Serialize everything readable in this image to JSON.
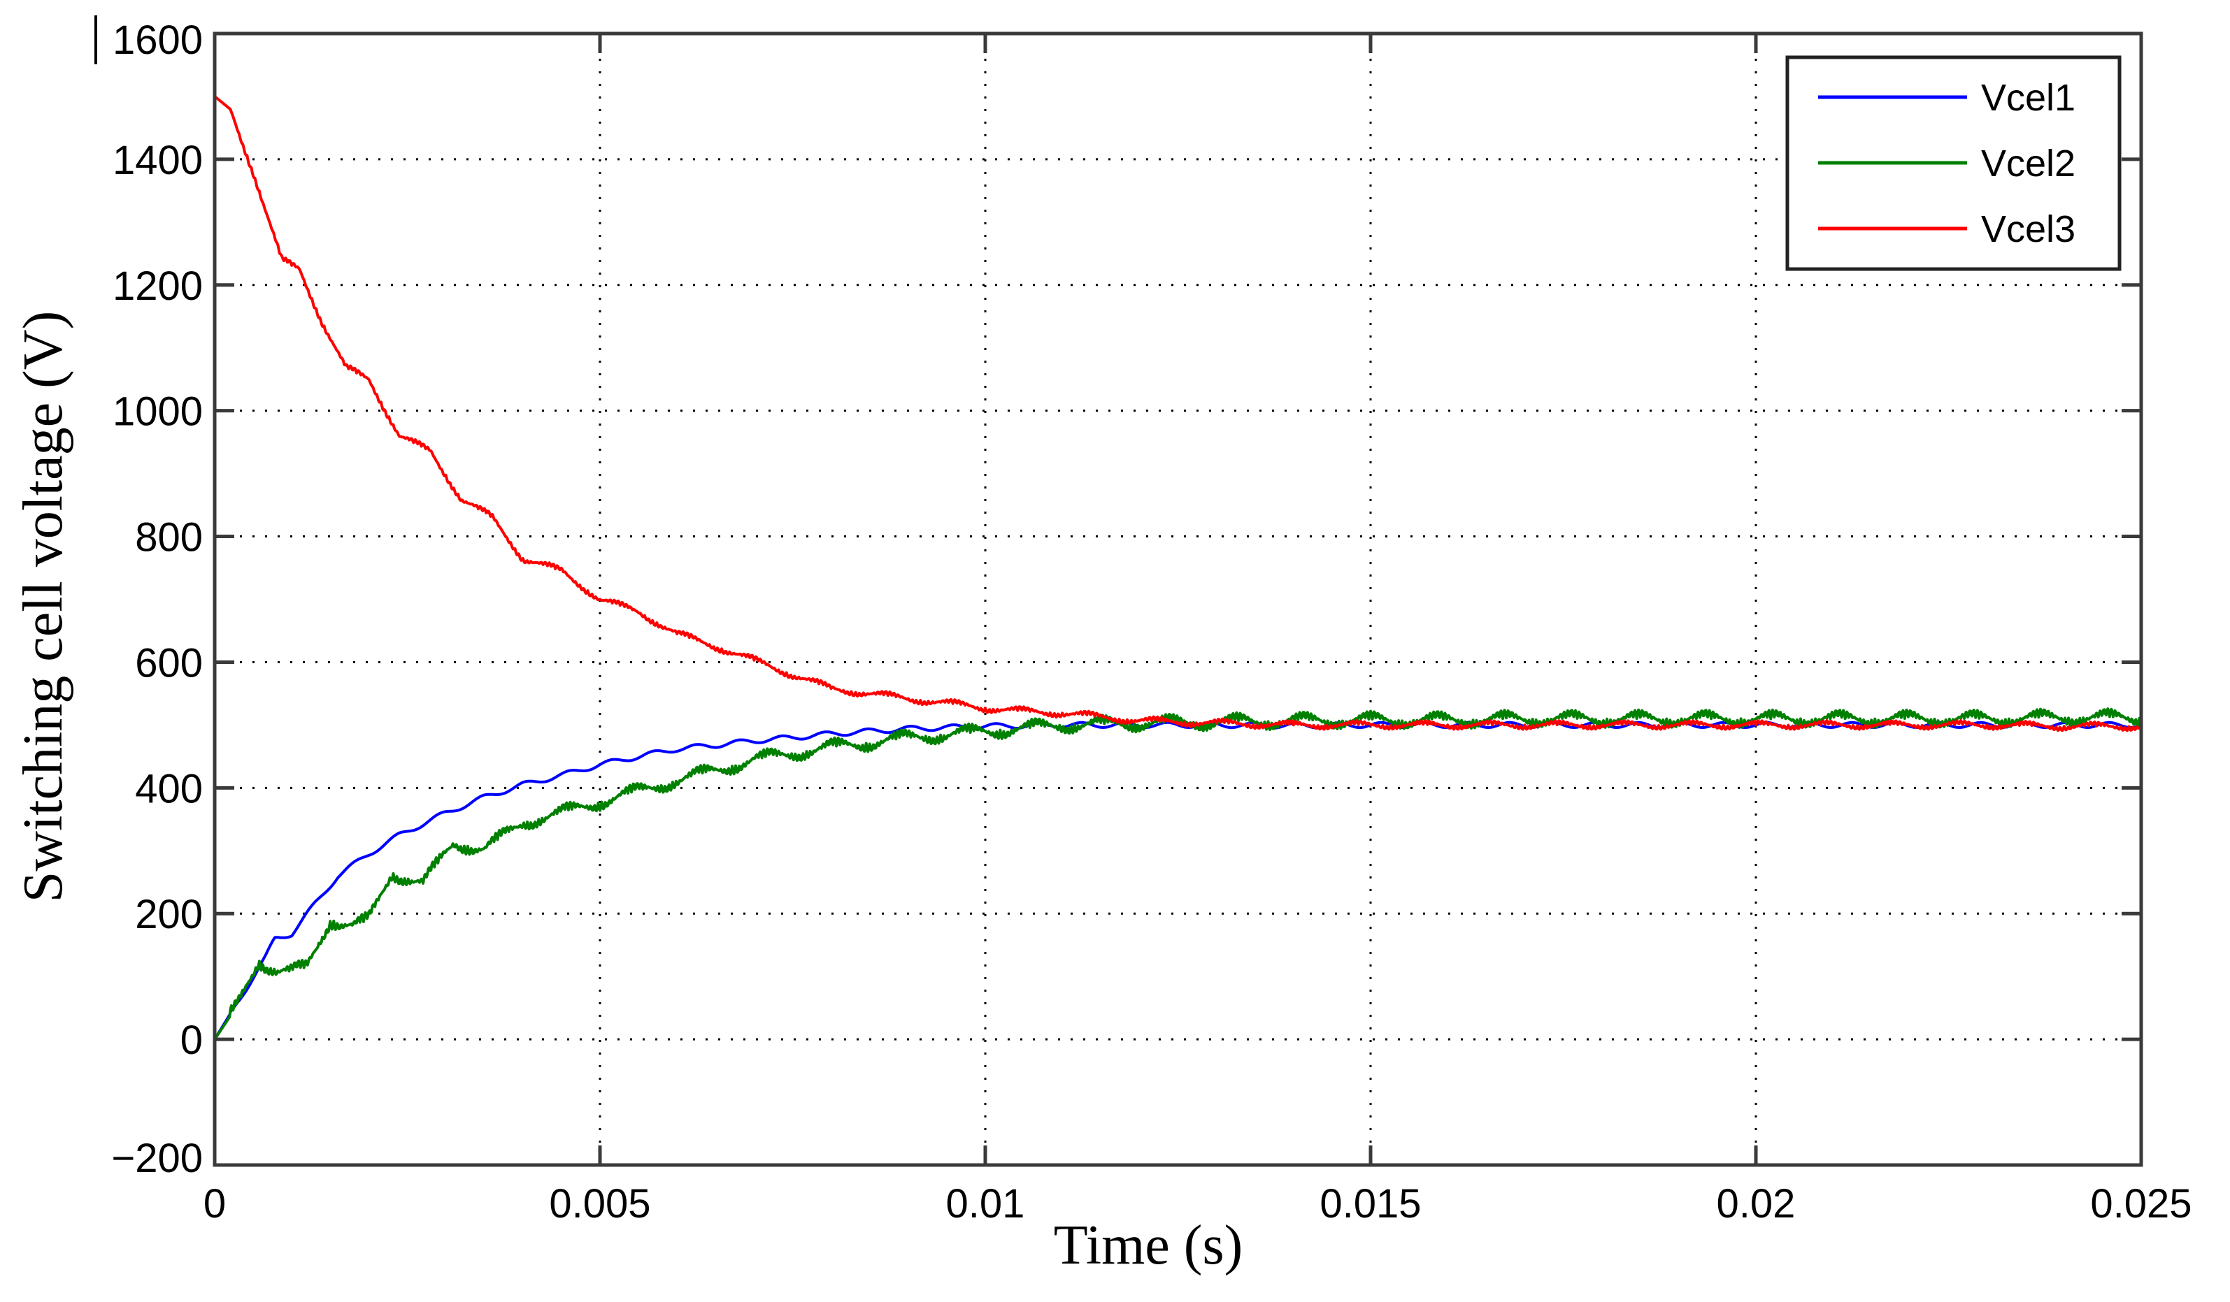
{
  "chart_data": {
    "type": "line",
    "title": "",
    "xlabel": "Time (s)",
    "ylabel": "Switching cell voltage (V)",
    "xlim": [
      0,
      0.025
    ],
    "ylim": [
      -200,
      1600
    ],
    "grid": true,
    "legend_position": "upper right",
    "x_ticks": [
      0,
      0.005,
      0.01,
      0.015,
      0.02,
      0.025
    ],
    "x_tick_labels": [
      "0",
      "0.005",
      "0.01",
      "0.015",
      "0.02",
      "0.025"
    ],
    "y_ticks": [
      -200,
      0,
      200,
      400,
      600,
      800,
      1000,
      1200,
      1400,
      1600
    ],
    "y_tick_labels": [
      "-200",
      "0",
      "200",
      "400",
      "600",
      "800",
      "1000",
      "1200",
      "1400",
      "1600"
    ],
    "series": [
      {
        "name": "Vcel1",
        "color": "#0000ff",
        "x": [
          0,
          0.0003,
          0.00066,
          0.00078,
          0.001,
          0.0013,
          0.0016,
          0.002,
          0.0024,
          0.003,
          0.0035,
          0.004,
          0.0045,
          0.005,
          0.0055,
          0.006,
          0.0065,
          0.007,
          0.0075,
          0.008,
          0.0085,
          0.009,
          0.0095,
          0.01,
          0.011,
          0.012,
          0.013,
          0.014,
          0.015,
          0.016,
          0.017,
          0.018,
          0.019,
          0.02,
          0.021,
          0.022,
          0.023,
          0.024,
          0.025
        ],
        "y": [
          0,
          60,
          130,
          160,
          168,
          215,
          260,
          295,
          325,
          360,
          385,
          405,
          420,
          437,
          450,
          462,
          468,
          475,
          480,
          486,
          490,
          494,
          496,
          498,
          500,
          500,
          500,
          499,
          500,
          500,
          500,
          500,
          500,
          500,
          500,
          500,
          500,
          500,
          500
        ]
      },
      {
        "name": "Vcel2",
        "color": "#008000",
        "x": [
          0,
          0.0003,
          0.00057,
          0.0008,
          0.001,
          0.0012,
          0.0015,
          0.0018,
          0.002,
          0.0023,
          0.0027,
          0.0031,
          0.0035,
          0.004,
          0.0045,
          0.005,
          0.0055,
          0.006,
          0.0065,
          0.007,
          0.0075,
          0.008,
          0.0085,
          0.009,
          0.0095,
          0.01,
          0.011,
          0.012,
          0.013,
          0.014,
          0.015,
          0.016,
          0.017,
          0.018,
          0.019,
          0.02,
          0.021,
          0.022,
          0.023,
          0.024,
          0.025
        ],
        "y": [
          0,
          55,
          125,
          110,
          108,
          115,
          190,
          180,
          190,
          265,
          247,
          313,
          302,
          345,
          360,
          378,
          395,
          412,
          428,
          445,
          455,
          465,
          472,
          480,
          485,
          490,
          500,
          503,
          505,
          507,
          508,
          508,
          510,
          510,
          510,
          510,
          510,
          510,
          510,
          512,
          512
        ]
      },
      {
        "name": "Vcel3",
        "color": "#ff0000",
        "x": [
          0,
          0.0002,
          0.0005,
          0.00087,
          0.0011,
          0.0014,
          0.0017,
          0.002,
          0.0024,
          0.0028,
          0.0032,
          0.0036,
          0.004,
          0.0045,
          0.005,
          0.0055,
          0.006,
          0.0065,
          0.007,
          0.0075,
          0.008,
          0.0085,
          0.009,
          0.0095,
          0.01,
          0.0105,
          0.011,
          0.012,
          0.013,
          0.014,
          0.015,
          0.016,
          0.017,
          0.018,
          0.019,
          0.02,
          0.021,
          0.022,
          0.023,
          0.024,
          0.025
        ],
        "y": [
          1500,
          1480,
          1380,
          1239,
          1225,
          1140,
          1068,
          1050,
          960,
          935,
          860,
          830,
          765,
          745,
          700,
          680,
          645,
          625,
          603,
          580,
          558,
          550,
          542,
          535,
          527,
          522,
          519,
          507,
          503,
          500,
          500,
          500,
          500,
          500,
          500,
          500,
          500,
          500,
          500,
          498,
          498
        ]
      }
    ]
  },
  "legend": {
    "items": [
      {
        "label": "Vcel1",
        "color": "#0000ff"
      },
      {
        "label": "Vcel2",
        "color": "#008000"
      },
      {
        "label": "Vcel3",
        "color": "#ff0000"
      }
    ]
  }
}
